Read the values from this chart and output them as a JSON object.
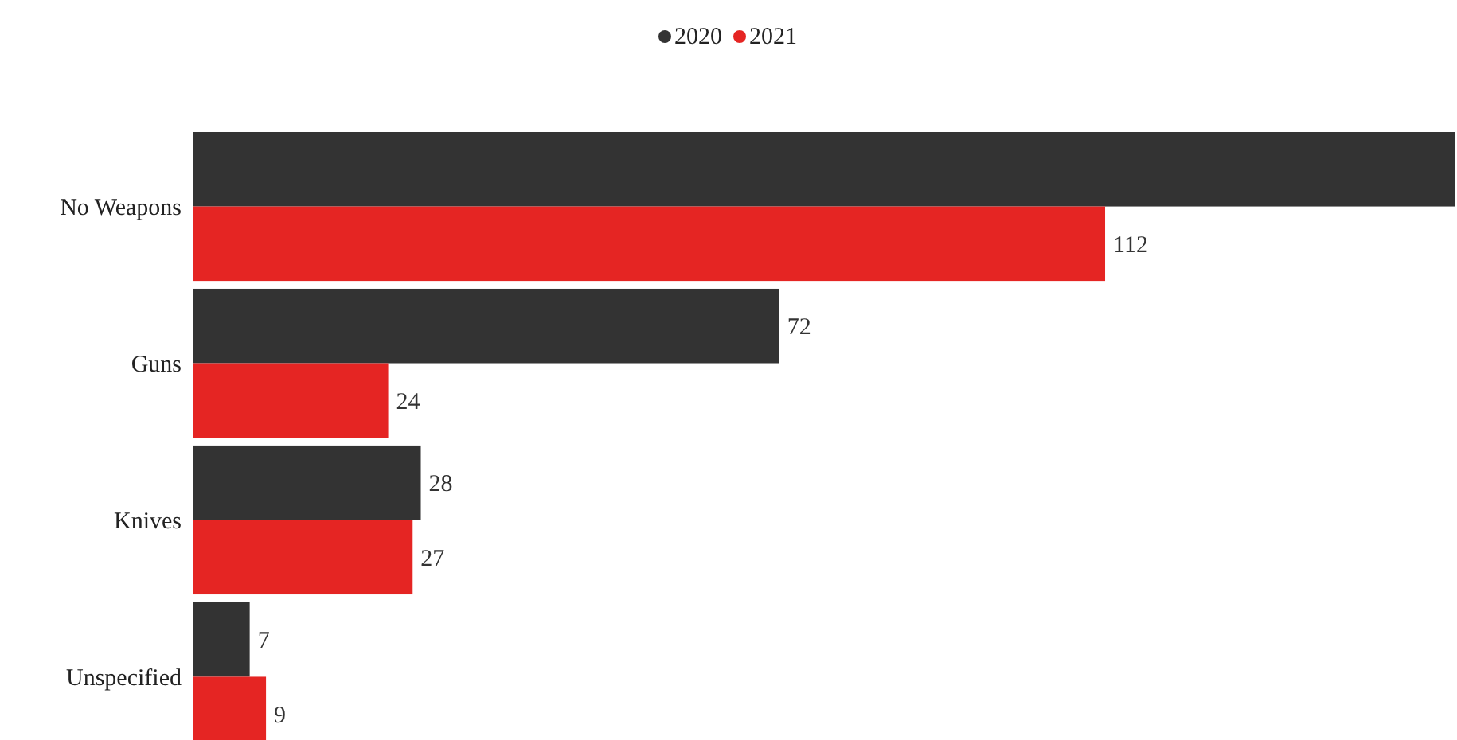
{
  "chart_data": {
    "type": "bar",
    "orientation": "horizontal",
    "categories": [
      "No Weapons",
      "Guns",
      "Knives",
      "Unspecified"
    ],
    "legend": "top",
    "series": [
      {
        "name": "2020",
        "color": "#333333",
        "values": [
          155,
          72,
          28,
          7
        ],
        "value_labels": [
          null,
          "72",
          "28",
          "7"
        ]
      },
      {
        "name": "2021",
        "color": "#e52523",
        "values": [
          112,
          24,
          27,
          9
        ],
        "value_labels": [
          "112",
          "24",
          "27",
          "9"
        ]
      }
    ]
  }
}
